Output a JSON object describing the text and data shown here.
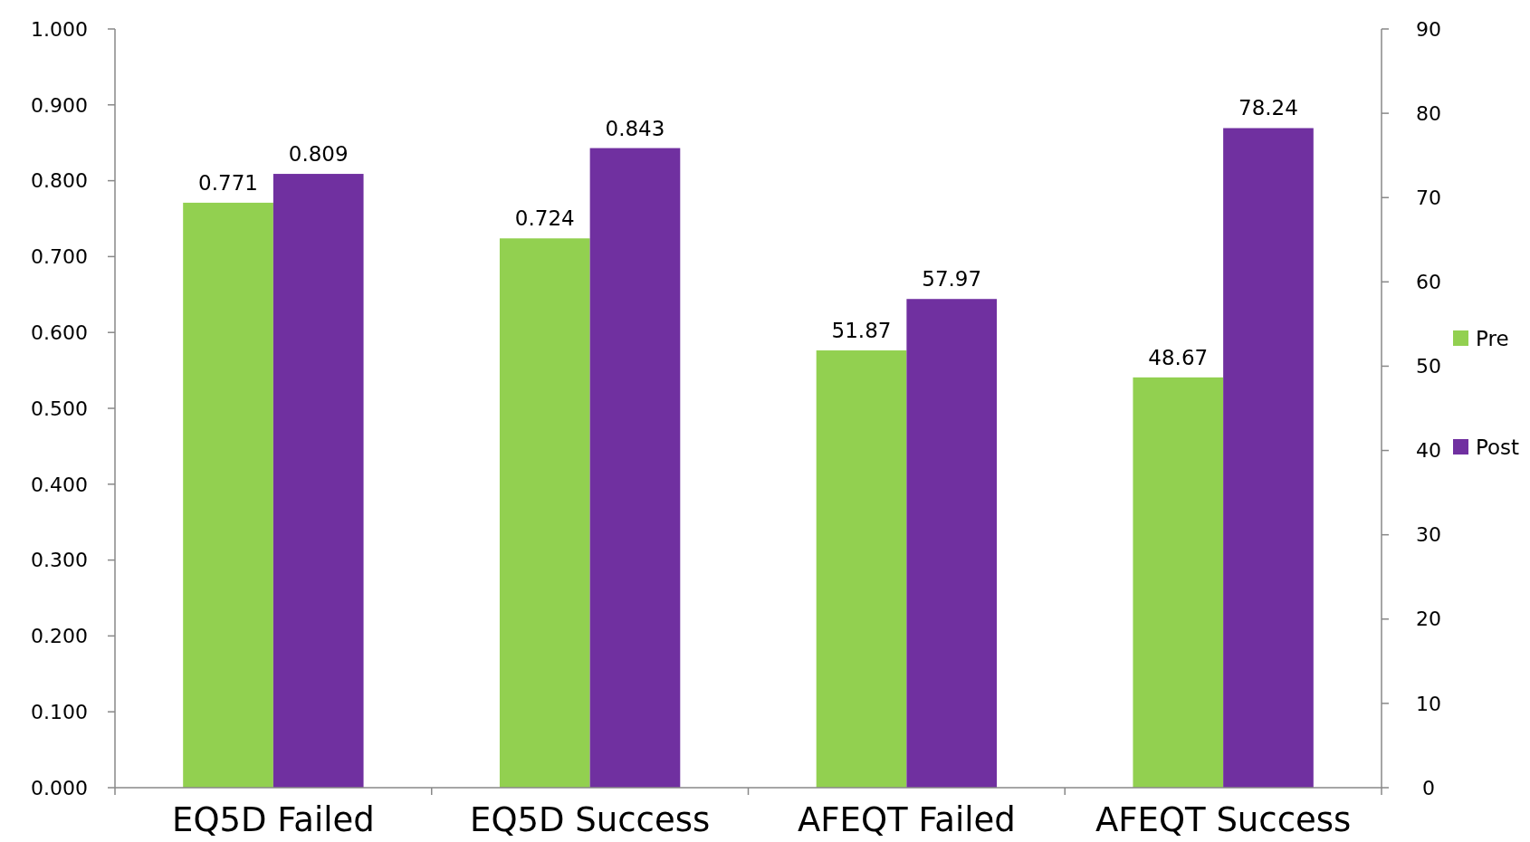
{
  "chart_data": {
    "type": "bar",
    "categories": [
      "EQ5D Failed",
      "EQ5D Success",
      "AFEQT Failed",
      "AFEQT Success"
    ],
    "series": [
      {
        "name": "Pre",
        "color": "#92d050",
        "values": [
          0.771,
          0.724,
          null,
          null
        ]
      },
      {
        "name": "Post",
        "color": "#7030a0",
        "values": [
          0.809,
          0.843,
          null,
          null
        ]
      },
      {
        "color": "#92d050",
        "axis": "y2",
        "values": [
          null,
          null,
          51.87,
          48.67
        ]
      },
      {
        "color": "#7030a0",
        "axis": "y2",
        "values": [
          null,
          null,
          57.97,
          78.24
        ]
      }
    ],
    "ylim": [
      0,
      1
    ],
    "yticks": [
      {
        "value": 0,
        "label": "0.000"
      },
      {
        "value": 0.1,
        "label": "0.100"
      },
      {
        "value": 0.2,
        "label": "0.200"
      },
      {
        "value": 0.3,
        "label": "0.300"
      },
      {
        "value": 0.4,
        "label": "0.400"
      },
      {
        "value": 0.5,
        "label": "0.500"
      },
      {
        "value": 0.6,
        "label": "0.600"
      },
      {
        "value": 0.7,
        "label": "0.700"
      },
      {
        "value": 0.8,
        "label": "0.800"
      },
      {
        "value": 0.9,
        "label": "0.900"
      },
      {
        "value": 1,
        "label": "1.000"
      }
    ],
    "y2lim": [
      0,
      90
    ],
    "y2ticks": [
      0,
      10,
      20,
      30,
      40,
      50,
      60,
      70,
      80,
      90
    ],
    "data_labels": true,
    "grid": false,
    "legend": "right"
  }
}
